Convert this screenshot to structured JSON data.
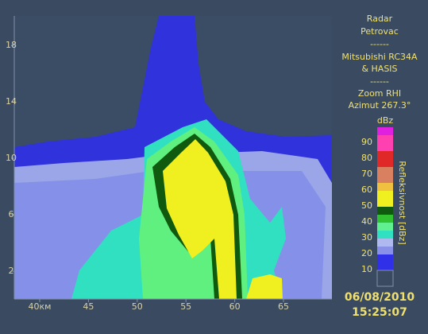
{
  "panel": {
    "lines": [
      "Radar",
      "Petrovac",
      "------",
      "Mitsubishi RC34A",
      "& HASIS",
      "------",
      "Zoom RHI",
      "Azimut 267.3°"
    ]
  },
  "axes": {
    "x_ticks": [
      "40км",
      "45",
      "50",
      "55",
      "60",
      "65"
    ],
    "y_ticks": [
      "18",
      "14",
      "10",
      "6",
      "2"
    ]
  },
  "colorbar": {
    "unit": "dBz",
    "labels": [
      "90",
      "80",
      "70",
      "60",
      "50",
      "40",
      "30",
      "20",
      "10"
    ],
    "title": "Refleksivnost [dBz]"
  },
  "timestamp": {
    "date": "06/08/2010",
    "time": "15:25:07"
  }
}
